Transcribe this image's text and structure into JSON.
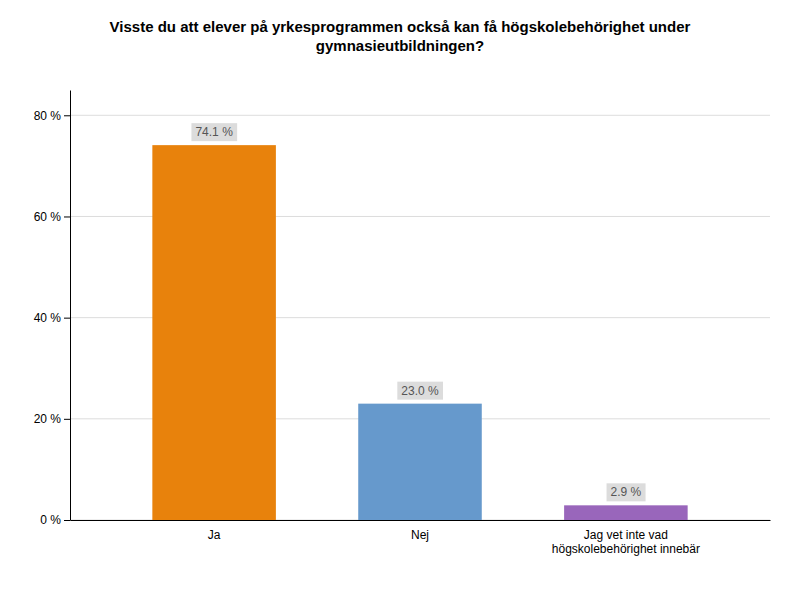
{
  "chart_data": {
    "type": "bar",
    "title": "Visste du att elever på yrkesprogrammen också kan få högskolebehörighet under\ngymnasieutbildningen?",
    "categories": [
      "Ja",
      "Nej",
      "Jag vet inte vad\nhögskolebehörighet innebär"
    ],
    "values": [
      74.1,
      23.0,
      2.9
    ],
    "value_labels": [
      "74.1 %",
      "23.0 %",
      "2.9 %"
    ],
    "data_labels": true,
    "colors": [
      "#E8820C",
      "#6699CC",
      "#9966BB"
    ],
    "ylim": [
      0,
      85
    ],
    "yticks": [
      {
        "value": 0,
        "label": "0 %"
      },
      {
        "value": 20,
        "label": "20 %"
      },
      {
        "value": 40,
        "label": "40 %"
      },
      {
        "value": 60,
        "label": "60 %"
      },
      {
        "value": 80,
        "label": "80 %"
      }
    ],
    "grid": true
  }
}
